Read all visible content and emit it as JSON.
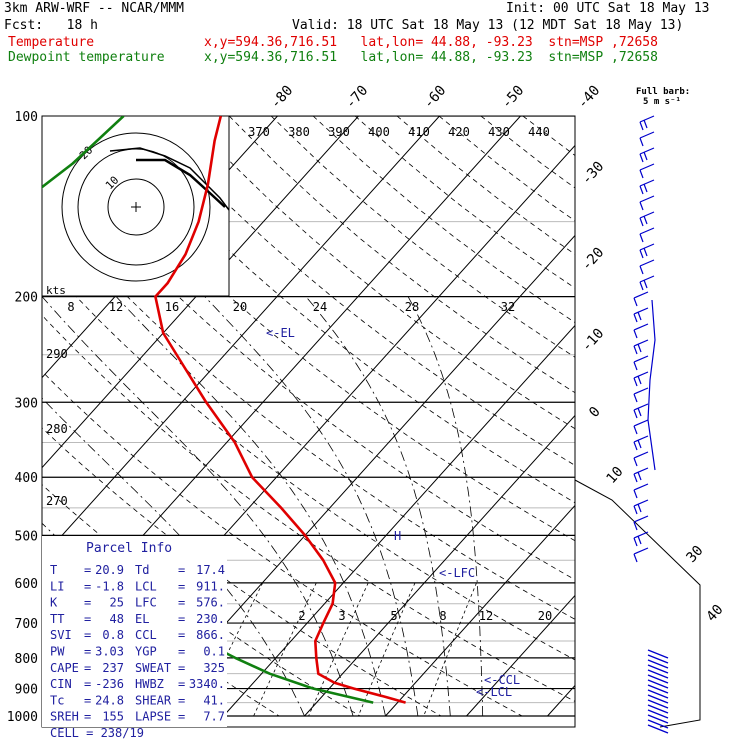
{
  "header": {
    "model": "3km ARW-WRF -- NCAR/MMM",
    "init": "Init: 00 UTC Sat 18 May 13",
    "fcst": "Fcst:   18 h",
    "valid": "Valid: 18 UTC Sat 18 May 13 (12 MDT Sat 18 May 13)",
    "temp_label": "Temperature",
    "temp_info": "x,y=594.36,716.51   lat,lon= 44.88, -93.23  stn=MSP ,72658",
    "dew_label": "Dewpoint temperature",
    "dew_info": "x,y=594.36,716.51   lat,lon= 44.88, -93.23  stn=MSP ,72658"
  },
  "colors": {
    "temperature": "#e00000",
    "dewpoint": "#108010",
    "parcel_text": "#2020a0",
    "wind": "#0000cc"
  },
  "chart_data": {
    "type": "line",
    "title": "",
    "ylabel": "",
    "y_scale": "log-pressure",
    "pressure_ticks": [
      "100",
      "200",
      "300",
      "400",
      "500",
      "600",
      "700",
      "800",
      "900",
      "1000"
    ],
    "isotherm_labels": [
      "-80",
      "-70",
      "-60",
      "-50",
      "-40",
      "-30",
      "-20",
      "-10",
      "0",
      "10",
      "30",
      "40"
    ],
    "theta_labels": [
      "370",
      "380",
      "390",
      "400",
      "410",
      "420",
      "430",
      "440"
    ],
    "mixing_ratio_labels": [
      "2",
      "3",
      "5",
      "8",
      "12",
      "20"
    ],
    "hodograph_speed_labels": [
      "8",
      "12",
      "16",
      "20",
      "24",
      "28",
      "32"
    ],
    "hodograph_units": "kts",
    "hodograph_ring_labels": [
      "20",
      "10"
    ],
    "theta_e_labels": [
      "290",
      "280",
      "270"
    ],
    "level_markers": [
      "<-EL",
      "<-LFC",
      "<-CCL",
      "<-LCL",
      "H"
    ],
    "wind_legend": "Full barb:\n5 m s⁻¹",
    "series": [
      {
        "name": "Temperature",
        "pressure": [
          100,
          110,
          130,
          150,
          170,
          190,
          200,
          230,
          260,
          300,
          350,
          400,
          450,
          500,
          550,
          600,
          650,
          700,
          750,
          800,
          850,
          880,
          900,
          930,
          950
        ],
        "values": [
          -67,
          -65,
          -61,
          -58,
          -56,
          -55,
          -55,
          -50,
          -44,
          -37,
          -29,
          -23,
          -16,
          -10,
          -5,
          -1,
          1,
          2,
          3,
          5,
          7,
          10,
          13,
          18,
          21
        ]
      },
      {
        "name": "Dewpoint temperature",
        "pressure": [
          100,
          120,
          140,
          160,
          180,
          200,
          230,
          270,
          300,
          330,
          360,
          390,
          400,
          430,
          480,
          520,
          560,
          600,
          650,
          700,
          750,
          800,
          850,
          900,
          950
        ],
        "values": [
          -79,
          -80,
          -82,
          -84,
          -85,
          -86,
          -84,
          -76,
          -78,
          -90,
          -82,
          -62,
          -61,
          -57,
          -49,
          -42,
          -35,
          -31,
          -23,
          -17,
          -11,
          -5,
          1,
          8,
          17
        ]
      }
    ]
  },
  "parcel": {
    "title": "Parcel Info",
    "rows": [
      {
        "l1": "T",
        "v1": "20.9",
        "l2": "Td",
        "v2": "17.4"
      },
      {
        "l1": "LI",
        "v1": "-1.8",
        "l2": "LCL",
        "v2": "911."
      },
      {
        "l1": "K",
        "v1": "25",
        "l2": "LFC",
        "v2": "576."
      },
      {
        "l1": "TT",
        "v1": "48",
        "l2": "EL",
        "v2": "230."
      },
      {
        "l1": "SVI",
        "v1": "0.8",
        "l2": "CCL",
        "v2": "866."
      },
      {
        "l1": "PW",
        "v1": "3.03",
        "l2": "YGP",
        "v2": "0.1"
      },
      {
        "l1": "CAPE",
        "v1": "237",
        "l2": "SWEAT",
        "v2": "325"
      },
      {
        "l1": "CIN",
        "v1": "-236",
        "l2": "HWBZ",
        "v2": "3340."
      },
      {
        "l1": "Tc",
        "v1": "24.8",
        "l2": "SHEAR",
        "v2": "41."
      },
      {
        "l1": "SREH",
        "v1": "155",
        "l2": "LAPSE",
        "v2": "7.7"
      }
    ],
    "cell": "CELL = 238/19"
  }
}
